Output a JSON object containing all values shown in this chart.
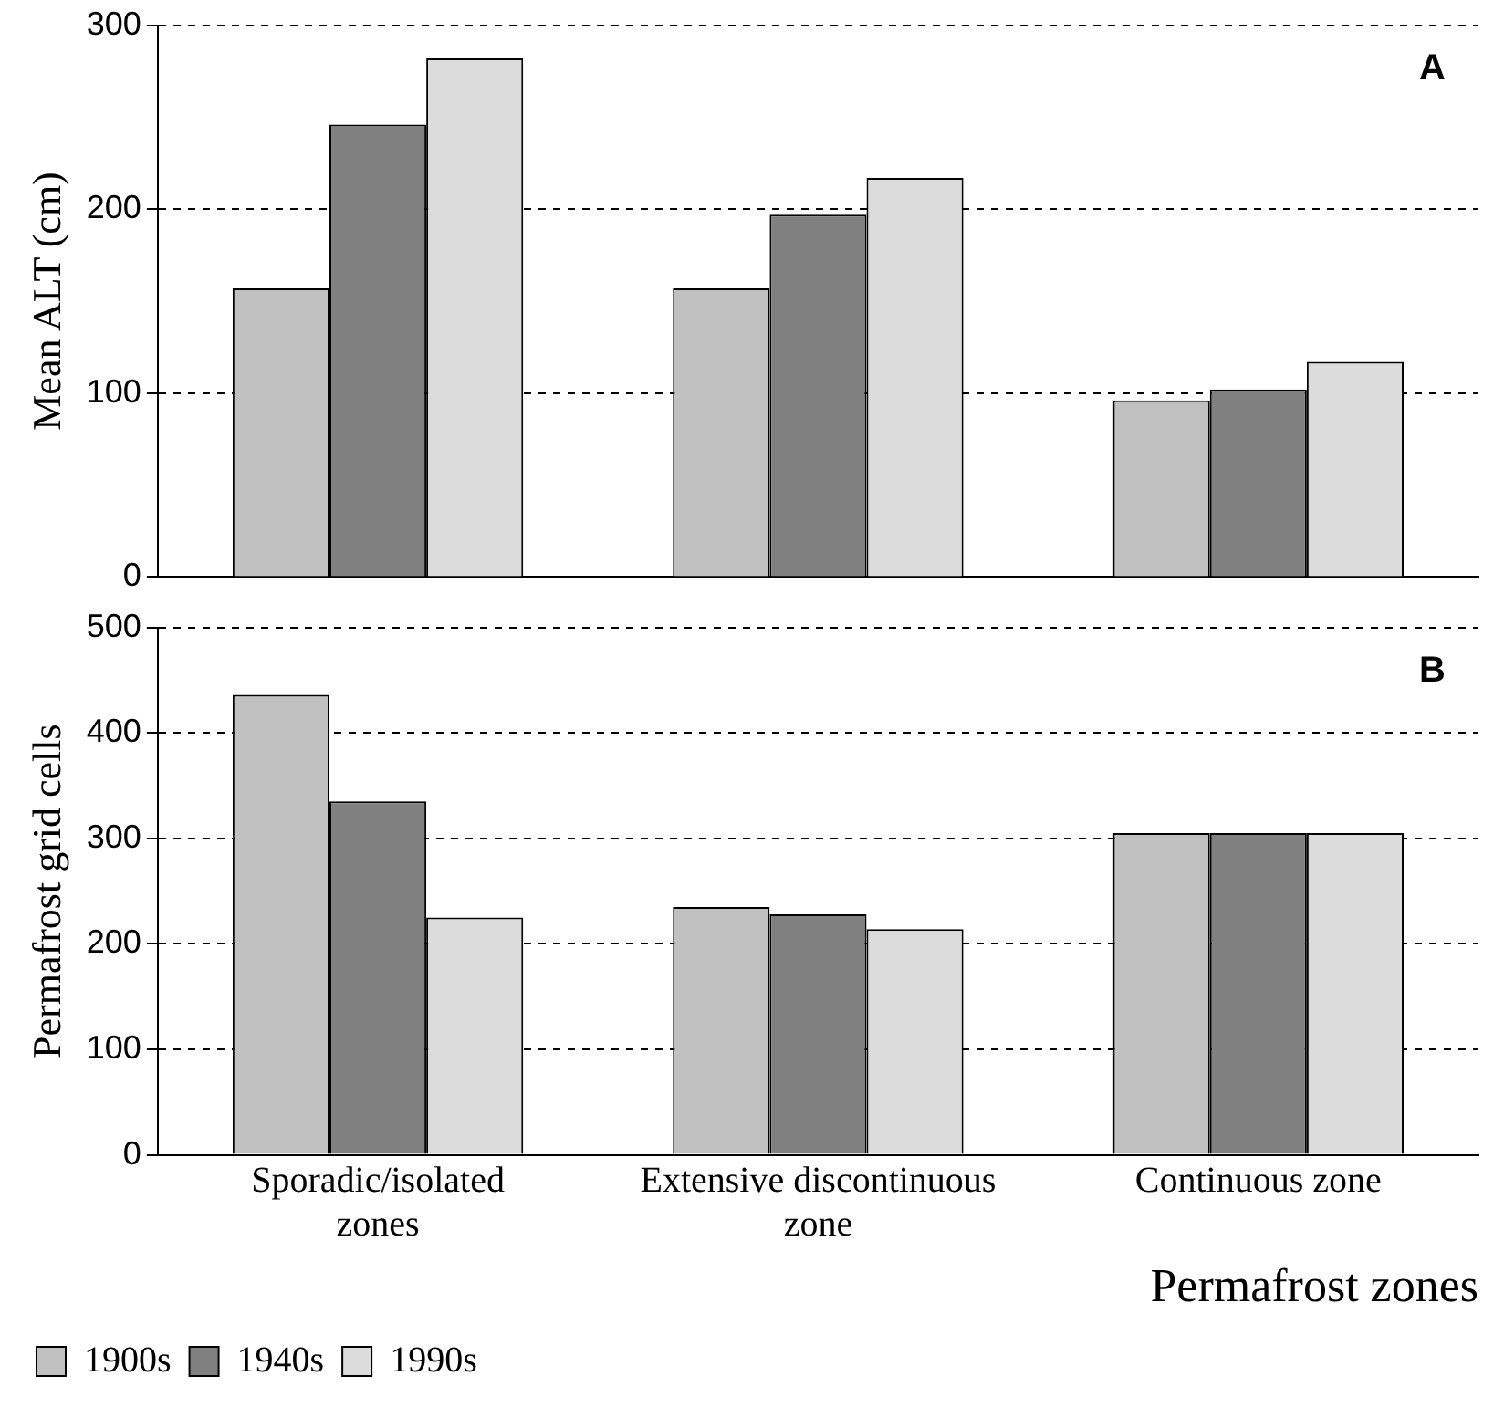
{
  "chart_data": [
    {
      "type": "bar",
      "ylabel": "Mean ALT (cm)",
      "categories": [
        null,
        null,
        null
      ],
      "series": [
        {
          "color": "#c0c0c0",
          "values": [
            157,
            157,
            96
          ]
        },
        {
          "color": "#808080",
          "values": [
            246,
            197,
            102
          ]
        },
        {
          "color": "#dcdcdc",
          "values": [
            282,
            217,
            117
          ]
        }
      ],
      "ylim": [
        0,
        300
      ],
      "yticks": [
        0,
        100,
        200,
        300
      ],
      "grid": "y",
      "tick_labels": "y",
      "annotations": [
        "A"
      ]
    },
    {
      "type": "bar",
      "ylabel": "Permafrost grid cells",
      "xlabel": "Permafrost zones",
      "categories": [
        "Sporadic/isolated zones",
        "Extensive discontinuous zone",
        "Continuous zone"
      ],
      "series": [
        {
          "name": "1900s",
          "color": "#c0c0c0",
          "values": [
            436,
            235,
            305
          ]
        },
        {
          "name": "1940s",
          "color": "#808080",
          "values": [
            335,
            228,
            305
          ]
        },
        {
          "name": "1990s",
          "color": "#dcdcdc",
          "values": [
            225,
            214,
            305
          ]
        }
      ],
      "ylim": [
        0,
        500
      ],
      "yticks": [
        0,
        100,
        200,
        300,
        400,
        500
      ],
      "grid": "y",
      "legend": "bottom left",
      "annotations": [
        "B"
      ]
    }
  ]
}
